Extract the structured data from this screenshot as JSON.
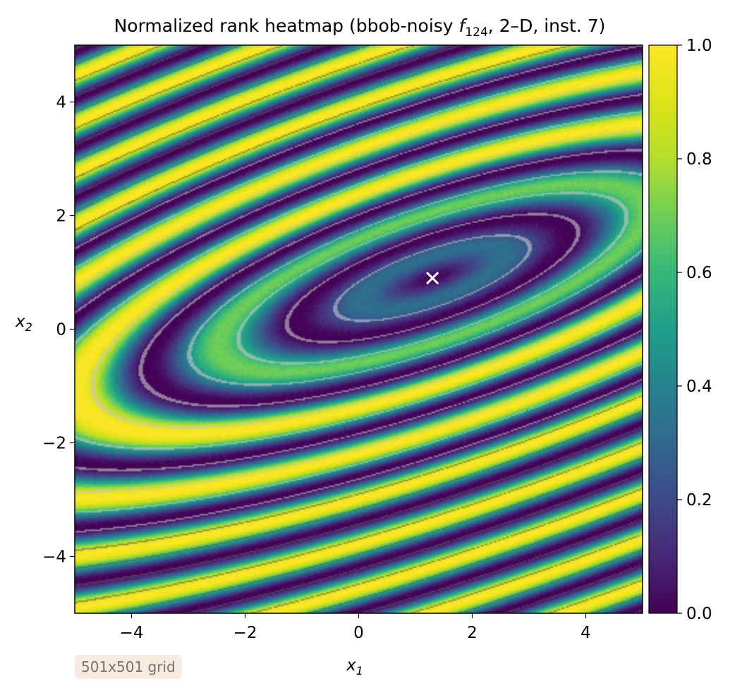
{
  "chart_data": {
    "type": "heatmap",
    "title_main": "Normalized rank heatmap (bbob-noisy ",
    "title_f": "f",
    "title_sub": "124",
    "title_tail": ", 2–D, inst. 7)",
    "xlabel": "x",
    "xlabel_sub": "1",
    "ylabel": "x",
    "ylabel_sub": "2",
    "xlim": [
      -5,
      5
    ],
    "ylim": [
      -5,
      5
    ],
    "x_ticks": [
      -4,
      -2,
      0,
      2,
      4
    ],
    "x_tick_labels": [
      "−4",
      "−2",
      "0",
      "2",
      "4"
    ],
    "y_ticks": [
      -4,
      -2,
      0,
      2,
      4
    ],
    "y_tick_labels": [
      "−4",
      "−2",
      "0",
      "2",
      "4"
    ],
    "colorbar": {
      "colormap": "viridis",
      "range": [
        0,
        1
      ],
      "ticks": [
        0,
        0.2,
        0.4,
        0.6,
        0.8,
        1.0
      ],
      "tick_labels": [
        "0.0",
        "0.2",
        "0.4",
        "0.6",
        "0.8",
        "1.0"
      ]
    },
    "optimum_marker": {
      "x": 1.3,
      "y": 0.9,
      "symbol": "×",
      "color": "#ffffff"
    },
    "annotation": "501x501 grid"
  }
}
